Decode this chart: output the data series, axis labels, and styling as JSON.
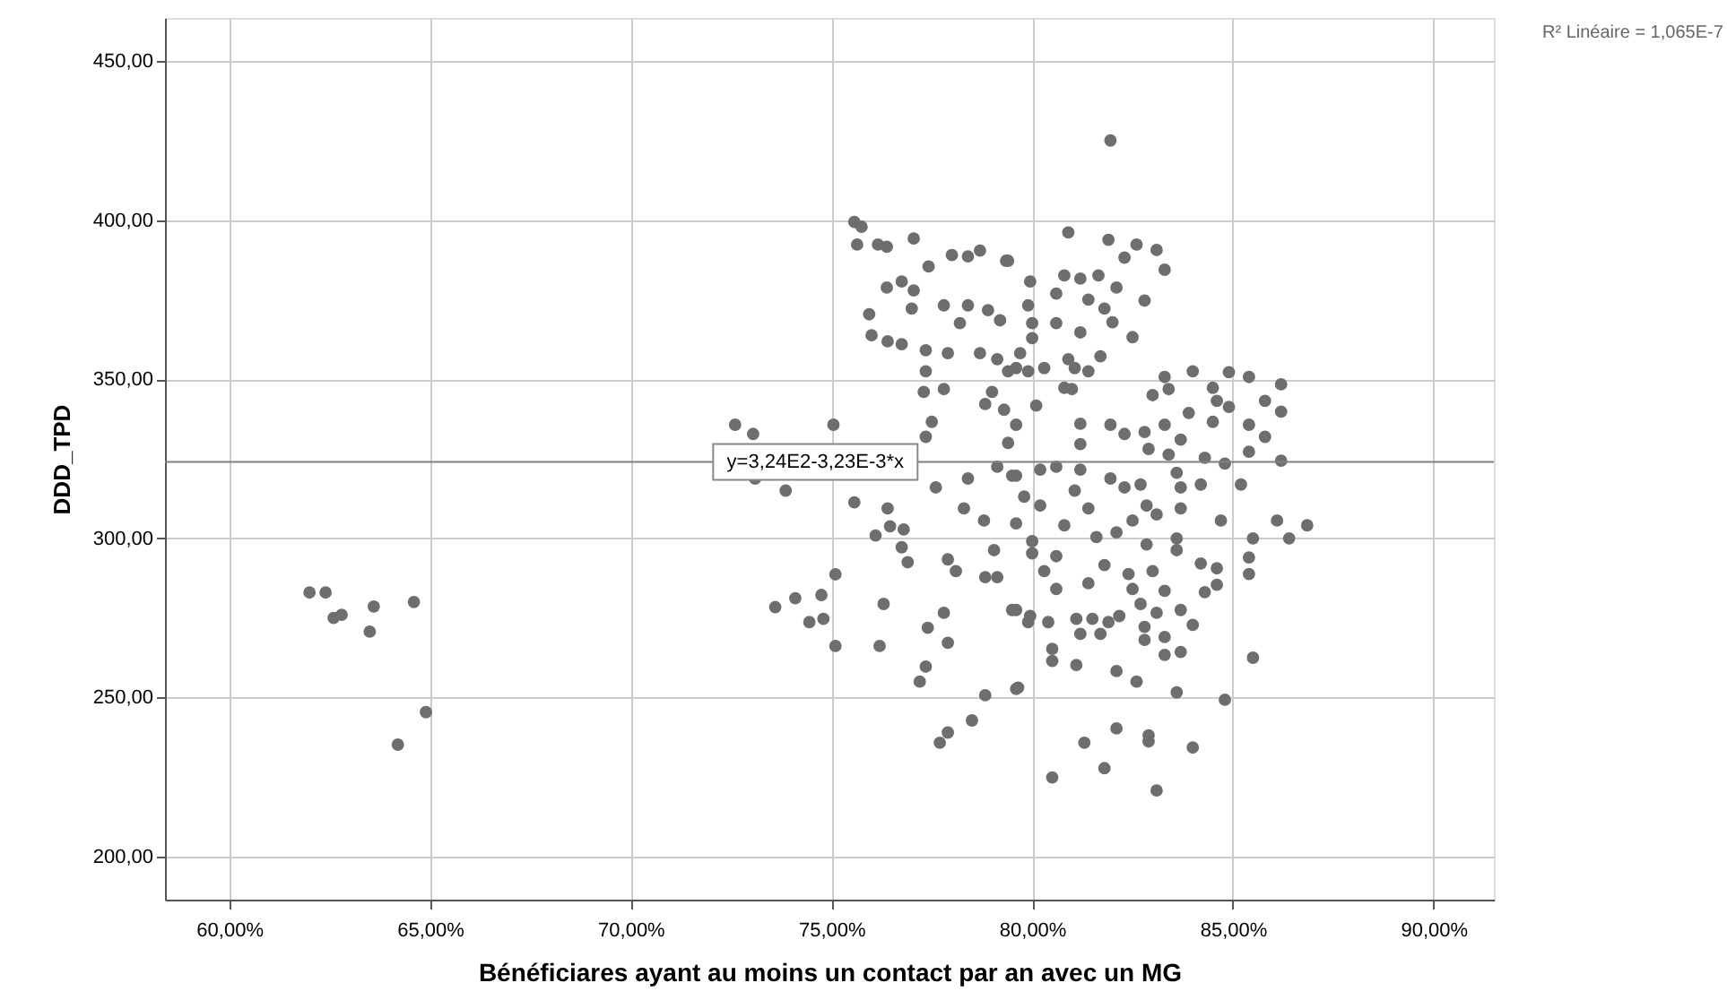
{
  "chart_data": {
    "type": "scatter",
    "xlabel": "Bénéficiares ayant au moins un contact par an avec un MG",
    "ylabel": "DDD_TPD",
    "xlim": [
      58.4,
      91.5
    ],
    "ylim": [
      186.5,
      463.5
    ],
    "xticks": [
      {
        "value": 60,
        "label": "60,00%"
      },
      {
        "value": 65,
        "label": "65,00%"
      },
      {
        "value": 70,
        "label": "70,00%"
      },
      {
        "value": 75,
        "label": "75,00%"
      },
      {
        "value": 80,
        "label": "80,00%"
      },
      {
        "value": 85,
        "label": "85,00%"
      },
      {
        "value": 90,
        "label": "90,00%"
      }
    ],
    "yticks": [
      {
        "value": 200,
        "label": "200,00"
      },
      {
        "value": 250,
        "label": "250,00"
      },
      {
        "value": 300,
        "label": "300,00"
      },
      {
        "value": 350,
        "label": "350,00"
      },
      {
        "value": 400,
        "label": "400,00"
      },
      {
        "value": 450,
        "label": "450,00"
      }
    ],
    "grid": true,
    "marker": "circle",
    "annotations": [
      "R² Linéaire = 1,065E-7",
      {
        "text": "y=3,24E2-3,23E-3*x",
        "x": 74.6,
        "y": 324
      }
    ],
    "series": [
      {
        "color": "#6e6e6e",
        "x": [
          62.0,
          62.4,
          62.6,
          62.8,
          63.6,
          64.6,
          63.5,
          64.9,
          64.2,
          75.57,
          75.75,
          75.64,
          76.16,
          76.38,
          77.05,
          77.42,
          78.0,
          78.4,
          78.7,
          79.35,
          76.38,
          76.75,
          77.05,
          75.94,
          77.0,
          77.8,
          78.4,
          78.9,
          78.2,
          79.2,
          76.0,
          76.4,
          76.75,
          77.35,
          77.9,
          78.7,
          79.13,
          79.6,
          77.35,
          77.3,
          77.8,
          79.0,
          78.83,
          79.3,
          72.6,
          73.05,
          75.05,
          77.5,
          77.35,
          79.6,
          79.4,
          73.86,
          73.1,
          75.57,
          76.4,
          77.6,
          78.4,
          79.13,
          79.6,
          78.3,
          78.8,
          76.46,
          76.1,
          76.8,
          76.75,
          76.9,
          77.9,
          78.1,
          79.05,
          78.83,
          79.13,
          75.1,
          73.6,
          74.1,
          74.75,
          74.45,
          74.8,
          75.1,
          76.2,
          76.3,
          77.4,
          77.8,
          77.9,
          77.35,
          77.2,
          78.83,
          79.65,
          78.5,
          77.9,
          77.7,
          79.6,
          79.9,
          80.9,
          81.9,
          82.3,
          82.6,
          83.1,
          83.3,
          79.4,
          79.95,
          80.8,
          81.2,
          81.65,
          82.1,
          80.6,
          81.4,
          81.8,
          82.8,
          79.9,
          80.0,
          80.6,
          81.2,
          82.0,
          82.5,
          80.0,
          79.7,
          80.9,
          81.7,
          79.9,
          80.3,
          81.06,
          81.4,
          80.8,
          79.4,
          80.1,
          81.2,
          81.95,
          82.3,
          82.8,
          81.2,
          83.3,
          83.0,
          84.0,
          83.4,
          84.5,
          84.9,
          85.4,
          86.2,
          85.8,
          83.9,
          84.6,
          84.9,
          84.5,
          85.4,
          85.8,
          86.2,
          83.3,
          83.7,
          82.9,
          83.4,
          83.6,
          84.3,
          84.8,
          84.2,
          85.2,
          85.4,
          86.2,
          79.5,
          80.2,
          80.6,
          81.2,
          81.95,
          82.3,
          82.7,
          81.06,
          81.4,
          80.2,
          79.8,
          82.85,
          83.1,
          83.7,
          83.7,
          79.6,
          80.8,
          81.6,
          82.1,
          82.5,
          82.85,
          83.6,
          83.6,
          84.7,
          85.5,
          86.1,
          86.4,
          86.85,
          85.4,
          85.4,
          80.0,
          80.6,
          80.0,
          80.3,
          80.6,
          81.4,
          81.8,
          82.4,
          83.0,
          83.3,
          82.5,
          84.2,
          84.6,
          84.6,
          84.3,
          83.7,
          84.0,
          83.1,
          82.7,
          82.17,
          81.9,
          81.5,
          81.1,
          81.2,
          81.7,
          80.4,
          79.95,
          79.5,
          82.8,
          82.8,
          83.3,
          83.3,
          83.7,
          80.5,
          80.5,
          81.1,
          82.1,
          82.6,
          83.6,
          84.8,
          85.5,
          79.6,
          81.3,
          82.1,
          82.9,
          82.9,
          84.0,
          81.8,
          80.5,
          83.1,
          81.95,
          80.99
        ],
        "values": [
          283,
          283,
          275,
          276,
          278.6,
          280,
          270.7,
          245.4,
          235.2,
          399.4,
          397.9,
          392.3,
          392.3,
          391.6,
          394.2,
          385.4,
          389,
          388.6,
          390.4,
          387.2,
          378.8,
          380.7,
          377.9,
          370.4,
          372.2,
          373.2,
          373.2,
          371.7,
          367.6,
          368.5,
          363.8,
          361.9,
          361,
          359.1,
          358.2,
          358.2,
          356.3,
          353.5,
          352.5,
          346,
          346.9,
          346,
          342.2,
          340.4,
          335.7,
          332.8,
          335.7,
          336.6,
          331.9,
          335.7,
          330,
          315,
          318.8,
          311.3,
          309.4,
          316,
          318.8,
          322.5,
          319.7,
          309.4,
          305.6,
          303.8,
          300.9,
          302.8,
          297.2,
          292.5,
          293.4,
          289.7,
          296.3,
          287.8,
          287.8,
          288.7,
          278.4,
          281.2,
          282.2,
          273.7,
          274.7,
          266.2,
          266.2,
          279.4,
          271.9,
          276.6,
          267.2,
          259.7,
          255,
          250.7,
          253.1,
          242.8,
          239,
          235.8,
          277.5,
          273.7,
          396.1,
          393.8,
          388.2,
          392.3,
          390.6,
          384.4,
          387.2,
          380.7,
          382.6,
          381.6,
          382.6,
          378.8,
          376.9,
          375,
          372.2,
          374.7,
          373.2,
          367.6,
          367.6,
          364.7,
          367.9,
          363.2,
          362.9,
          358.2,
          356.3,
          357.2,
          352.5,
          353.5,
          353.5,
          352.5,
          347.3,
          352.5,
          341.7,
          336,
          335.7,
          332.8,
          333.4,
          329.6,
          350.7,
          345,
          352.5,
          346.9,
          347.3,
          352.2,
          350.7,
          348.4,
          343.2,
          339.4,
          343.2,
          341.3,
          336.6,
          335.7,
          331.9,
          339.8,
          335.7,
          331,
          328.1,
          326.3,
          320.6,
          325.3,
          323.5,
          316.9,
          316.9,
          327.2,
          324.4,
          319.7,
          321.6,
          322.5,
          321.6,
          318.8,
          316,
          316.9,
          315,
          309.4,
          310.3,
          313.1,
          310.3,
          307.5,
          316,
          309.4,
          304.7,
          304.1,
          300.4,
          301.9,
          305.6,
          298.1,
          300,
          296.3,
          305.6,
          300,
          305.6,
          300,
          304.1,
          294,
          288.8,
          299.1,
          294.4,
          295.3,
          289.7,
          284.1,
          285.9,
          291.6,
          288.8,
          289.7,
          283.5,
          284.1,
          292.1,
          290.6,
          285.4,
          283.1,
          277.5,
          272.8,
          276.6,
          279.4,
          275.6,
          273.7,
          274.7,
          274.7,
          270,
          270,
          273.7,
          275.6,
          277.5,
          272.2,
          268.1,
          269,
          263.4,
          264.3,
          265.3,
          261.5,
          260.2,
          258.3,
          255,
          251.6,
          249.3,
          262.5,
          252.7,
          235.8,
          240.3,
          238.1,
          236.2,
          234.3,
          227.8,
          224.9,
          220.8,
          425,
          346.9
        ]
      },
      {
        "type": "line",
        "marker": "none",
        "color": "#808080",
        "x": [
          58.4,
          91.5
        ],
        "values": [
          324,
          324
        ]
      }
    ]
  }
}
